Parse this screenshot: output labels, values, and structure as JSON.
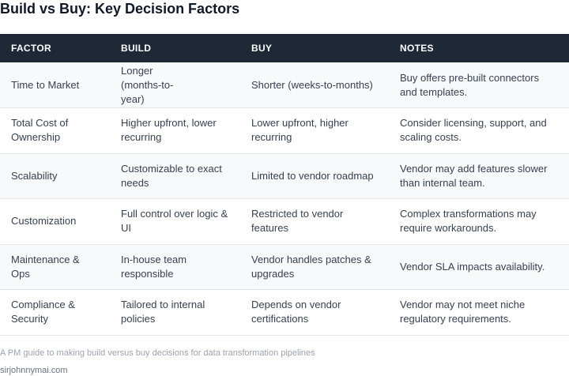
{
  "title": "Build vs Buy: Key Decision Factors",
  "table": {
    "headers": {
      "factor": "FACTOR",
      "build": "BUILD",
      "buy": "BUY",
      "notes": "NOTES"
    },
    "rows": [
      {
        "factor": "Time to Market",
        "build": "Longer (months-to-year)",
        "buy": "Shorter (weeks-to-months)",
        "notes": "Buy offers pre-built connectors and templates."
      },
      {
        "factor": "Total Cost of Ownership",
        "build": "Higher upfront, lower recurring",
        "buy": "Lower upfront, higher recurring",
        "notes": "Consider licensing, support, and scaling costs."
      },
      {
        "factor": "Scalability",
        "build": "Customizable to exact needs",
        "buy": "Limited to vendor roadmap",
        "notes": "Vendor may add features slower than internal team."
      },
      {
        "factor": "Customization",
        "build": "Full control over logic & UI",
        "buy": "Restricted to vendor features",
        "notes": "Complex transformations may require workarounds."
      },
      {
        "factor": "Maintenance & Ops",
        "build": "In-house team responsible",
        "buy": "Vendor handles patches & upgrades",
        "notes": "Vendor SLA impacts availability."
      },
      {
        "factor": "Compliance & Security",
        "build": "Tailored to internal policies",
        "buy": "Depends on vendor certifications",
        "notes": "Vendor may not meet niche regulatory requirements."
      }
    ]
  },
  "caption": "A PM guide to making build versus buy decisions for data transformation pipelines",
  "site": "sirjohnnymai.com"
}
